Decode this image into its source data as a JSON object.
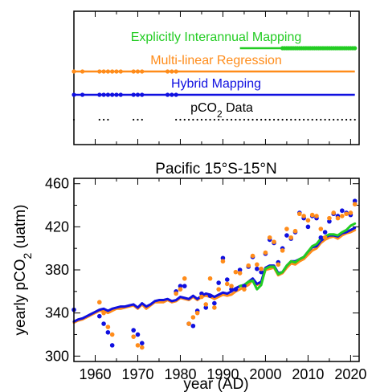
{
  "colors": {
    "explicit": "#22cc22",
    "regression": "#ff8c1a",
    "hybrid": "#1010e0",
    "data": "#000000",
    "axis": "#000000"
  },
  "chart_data": [
    {
      "type": "timeline",
      "x_range": [
        1955,
        2022
      ],
      "rows": [
        {
          "label": "Explicitly Interannual Mapping",
          "color_key": "explicit",
          "solid_from": 1994,
          "solid_to": 2004,
          "dotted_from": 2004,
          "dotted_to": 2021,
          "dots": []
        },
        {
          "label": "Multi-linear Regression",
          "color_key": "regression",
          "solid_from": 1955,
          "solid_to": 2021,
          "dotted_from": null,
          "dotted_to": null,
          "dots": [
            1955,
            1957,
            1961,
            1962,
            1963,
            1964,
            1965,
            1966,
            1969,
            1970,
            1971,
            1977,
            1978,
            1979
          ]
        },
        {
          "label": "Hybrid Mapping",
          "color_key": "hybrid",
          "solid_from": 1955,
          "solid_to": 2021,
          "dotted_from": null,
          "dotted_to": null,
          "dots": [
            1955,
            1957,
            1961,
            1962,
            1963,
            1964,
            1965,
            1966,
            1969,
            1970,
            1971,
            1977,
            1978,
            1979
          ]
        },
        {
          "label": "pCO",
          "label_sub": "2",
          "label_after": " Data",
          "color_key": "data",
          "solid_from": null,
          "solid_to": null,
          "dotted_from": 1979,
          "dotted_to": 2021,
          "dots": [
            1955,
            1961,
            1962,
            1963,
            1969,
            1970,
            1971
          ]
        }
      ]
    },
    {
      "type": "line",
      "title": "Pacific 15°S-15°N",
      "xlabel": "year (AD)",
      "ylabel": "yearly pCO",
      "ylabel_sub": "2",
      "ylabel_after": " (uatm)",
      "xlim": [
        1955,
        2022
      ],
      "ylim": [
        295,
        465
      ],
      "x_ticks": [
        1960,
        1970,
        1980,
        1990,
        2000,
        2010,
        2020
      ],
      "y_ticks": [
        300,
        340,
        380,
        420,
        460
      ],
      "years": [
        1955,
        1956,
        1957,
        1958,
        1959,
        1960,
        1961,
        1962,
        1963,
        1964,
        1965,
        1966,
        1967,
        1968,
        1969,
        1970,
        1971,
        1972,
        1973,
        1974,
        1975,
        1976,
        1977,
        1978,
        1979,
        1980,
        1981,
        1982,
        1983,
        1984,
        1985,
        1986,
        1987,
        1988,
        1989,
        1990,
        1991,
        1992,
        1993,
        1994,
        1995,
        1996,
        1997,
        1998,
        1999,
        2000,
        2001,
        2002,
        2003,
        2004,
        2005,
        2006,
        2007,
        2008,
        2009,
        2010,
        2011,
        2012,
        2013,
        2014,
        2015,
        2016,
        2017,
        2018,
        2019,
        2020,
        2021
      ],
      "series": [
        {
          "color_key": "regression",
          "values": [
            331,
            333,
            334,
            336,
            338,
            340,
            342,
            342,
            340,
            342,
            344,
            344,
            345,
            346,
            347,
            344,
            348,
            344,
            347,
            350,
            350,
            350,
            352,
            350,
            351,
            354,
            353,
            352,
            355,
            352,
            355,
            356,
            355,
            353,
            355,
            357,
            356,
            357,
            360,
            362,
            364,
            366,
            371,
            366,
            368,
            380,
            381,
            382,
            375,
            377,
            382,
            386,
            385,
            388,
            390,
            394,
            398,
            400,
            405,
            408,
            410,
            411,
            409,
            412,
            414,
            415,
            417
          ]
        },
        {
          "color_key": "hybrid",
          "values": [
            332,
            334,
            335,
            337,
            339,
            341,
            343,
            344,
            342,
            344,
            345,
            346,
            346,
            347,
            348,
            345,
            349,
            346,
            348,
            351,
            352,
            352,
            353,
            351,
            352,
            355,
            354,
            353,
            356,
            353,
            356,
            358,
            357,
            355,
            357,
            359,
            358,
            360,
            363,
            365,
            366,
            369,
            372,
            367,
            369,
            382,
            384,
            384,
            377,
            378,
            384,
            388,
            388,
            390,
            392,
            397,
            401,
            402,
            407,
            410,
            412,
            412,
            411,
            414,
            415,
            417,
            419
          ]
        },
        {
          "color_key": "explicit",
          "values": [
            null,
            null,
            null,
            null,
            null,
            null,
            null,
            null,
            null,
            null,
            null,
            null,
            null,
            null,
            null,
            null,
            null,
            null,
            null,
            null,
            null,
            null,
            null,
            null,
            null,
            null,
            null,
            null,
            null,
            null,
            null,
            null,
            null,
            null,
            null,
            null,
            null,
            null,
            null,
            365,
            366,
            369,
            370,
            362,
            366,
            381,
            383,
            383,
            376,
            378,
            384,
            388,
            387,
            390,
            392,
            397,
            402,
            404,
            409,
            411,
            413,
            413,
            412,
            415,
            417,
            421,
            423
          ]
        }
      ],
      "scatter": [
        {
          "color_key": "hybrid",
          "points": [
            [
              1955,
              343
            ],
            [
              1961,
              337
            ],
            [
              1962,
              330
            ],
            [
              1963,
              322
            ],
            [
              1964,
              310
            ],
            [
              1969,
              324
            ],
            [
              1970,
              320
            ],
            [
              1971,
              312
            ],
            [
              1979,
              360
            ],
            [
              1980,
              365
            ],
            [
              1981,
              365
            ],
            [
              1982,
              330
            ],
            [
              1983,
              328
            ],
            [
              1984,
              342
            ],
            [
              1985,
              358
            ],
            [
              1986,
              345
            ],
            [
              1987,
              356
            ],
            [
              1988,
              349
            ],
            [
              1989,
              368
            ],
            [
              1990,
              391
            ],
            [
              1991,
              371
            ],
            [
              1992,
              362
            ],
            [
              1993,
              362
            ],
            [
              1994,
              380
            ],
            [
              1995,
              365
            ],
            [
              1996,
              383
            ],
            [
              1997,
              392
            ],
            [
              1998,
              381
            ],
            [
              1999,
              378
            ],
            [
              2000,
              395
            ],
            [
              2001,
              408
            ],
            [
              2002,
              405
            ],
            [
              2003,
              387
            ],
            [
              2004,
              400
            ],
            [
              2005,
              412
            ],
            [
              2006,
              409
            ],
            [
              2007,
              415
            ],
            [
              2008,
              433
            ],
            [
              2009,
              428
            ],
            [
              2010,
              420
            ],
            [
              2011,
              430
            ],
            [
              2012,
              428
            ],
            [
              2013,
              410
            ],
            [
              2014,
              415
            ],
            [
              2015,
              425
            ],
            [
              2016,
              432
            ],
            [
              2017,
              430
            ],
            [
              2018,
              435
            ],
            [
              2019,
              433
            ],
            [
              2020,
              431
            ],
            [
              2021,
              444
            ]
          ]
        },
        {
          "color_key": "regression",
          "points": [
            [
              1961,
              350
            ],
            [
              1962,
              340
            ],
            [
              1963,
              327
            ],
            [
              1964,
              320
            ],
            [
              1969,
              318
            ],
            [
              1970,
              310
            ],
            [
              1971,
              308
            ],
            [
              1979,
              358
            ],
            [
              1980,
              362
            ],
            [
              1981,
              372
            ],
            [
              1982,
              330
            ],
            [
              1983,
              336
            ],
            [
              1984,
              340
            ],
            [
              1985,
              355
            ],
            [
              1986,
              348
            ],
            [
              1987,
              372
            ],
            [
              1988,
              345
            ],
            [
              1989,
              362
            ],
            [
              1990,
              388
            ],
            [
              1991,
              367
            ],
            [
              1992,
              365
            ],
            [
              1993,
              378
            ],
            [
              1994,
              377
            ],
            [
              1995,
              362
            ],
            [
              1996,
              384
            ],
            [
              1997,
              393
            ],
            [
              1998,
              385
            ],
            [
              1999,
              381
            ],
            [
              2000,
              396
            ],
            [
              2001,
              410
            ],
            [
              2002,
              406
            ],
            [
              2003,
              385
            ],
            [
              2004,
              398
            ],
            [
              2005,
              418
            ],
            [
              2006,
              410
            ],
            [
              2007,
              416
            ],
            [
              2008,
              432
            ],
            [
              2009,
              430
            ],
            [
              2010,
              426
            ],
            [
              2011,
              431
            ],
            [
              2012,
              430
            ],
            [
              2013,
              418
            ],
            [
              2014,
              410
            ],
            [
              2015,
              428
            ],
            [
              2016,
              433
            ],
            [
              2017,
              428
            ],
            [
              2018,
              430
            ],
            [
              2019,
              432
            ],
            [
              2020,
              433
            ],
            [
              2021,
              441
            ]
          ]
        }
      ]
    }
  ]
}
